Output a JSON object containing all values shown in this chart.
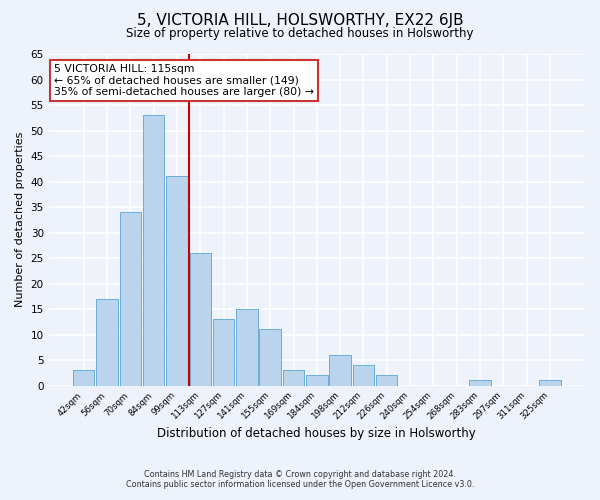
{
  "title": "5, VICTORIA HILL, HOLSWORTHY, EX22 6JB",
  "subtitle": "Size of property relative to detached houses in Holsworthy",
  "xlabel": "Distribution of detached houses by size in Holsworthy",
  "ylabel": "Number of detached properties",
  "bar_labels": [
    "42sqm",
    "56sqm",
    "70sqm",
    "84sqm",
    "99sqm",
    "113sqm",
    "127sqm",
    "141sqm",
    "155sqm",
    "169sqm",
    "184sqm",
    "198sqm",
    "212sqm",
    "226sqm",
    "240sqm",
    "254sqm",
    "268sqm",
    "283sqm",
    "297sqm",
    "311sqm",
    "325sqm"
  ],
  "bar_heights": [
    3,
    17,
    34,
    53,
    41,
    26,
    13,
    15,
    11,
    3,
    2,
    6,
    4,
    2,
    0,
    0,
    0,
    1,
    0,
    0,
    1
  ],
  "bar_color": "#bad4ee",
  "bar_edge_color": "#6aaed6",
  "reference_line_color": "#cc0000",
  "annotation_title": "5 VICTORIA HILL: 115sqm",
  "annotation_line1": "← 65% of detached houses are smaller (149)",
  "annotation_line2": "35% of semi-detached houses are larger (80) →",
  "annotation_box_color": "white",
  "annotation_box_edge_color": "#cc3333",
  "ylim": [
    0,
    65
  ],
  "yticks": [
    0,
    5,
    10,
    15,
    20,
    25,
    30,
    35,
    40,
    45,
    50,
    55,
    60,
    65
  ],
  "footer_line1": "Contains HM Land Registry data © Crown copyright and database right 2024.",
  "footer_line2": "Contains public sector information licensed under the Open Government Licence v3.0.",
  "background_color": "#edf2fb",
  "grid_color": "white"
}
